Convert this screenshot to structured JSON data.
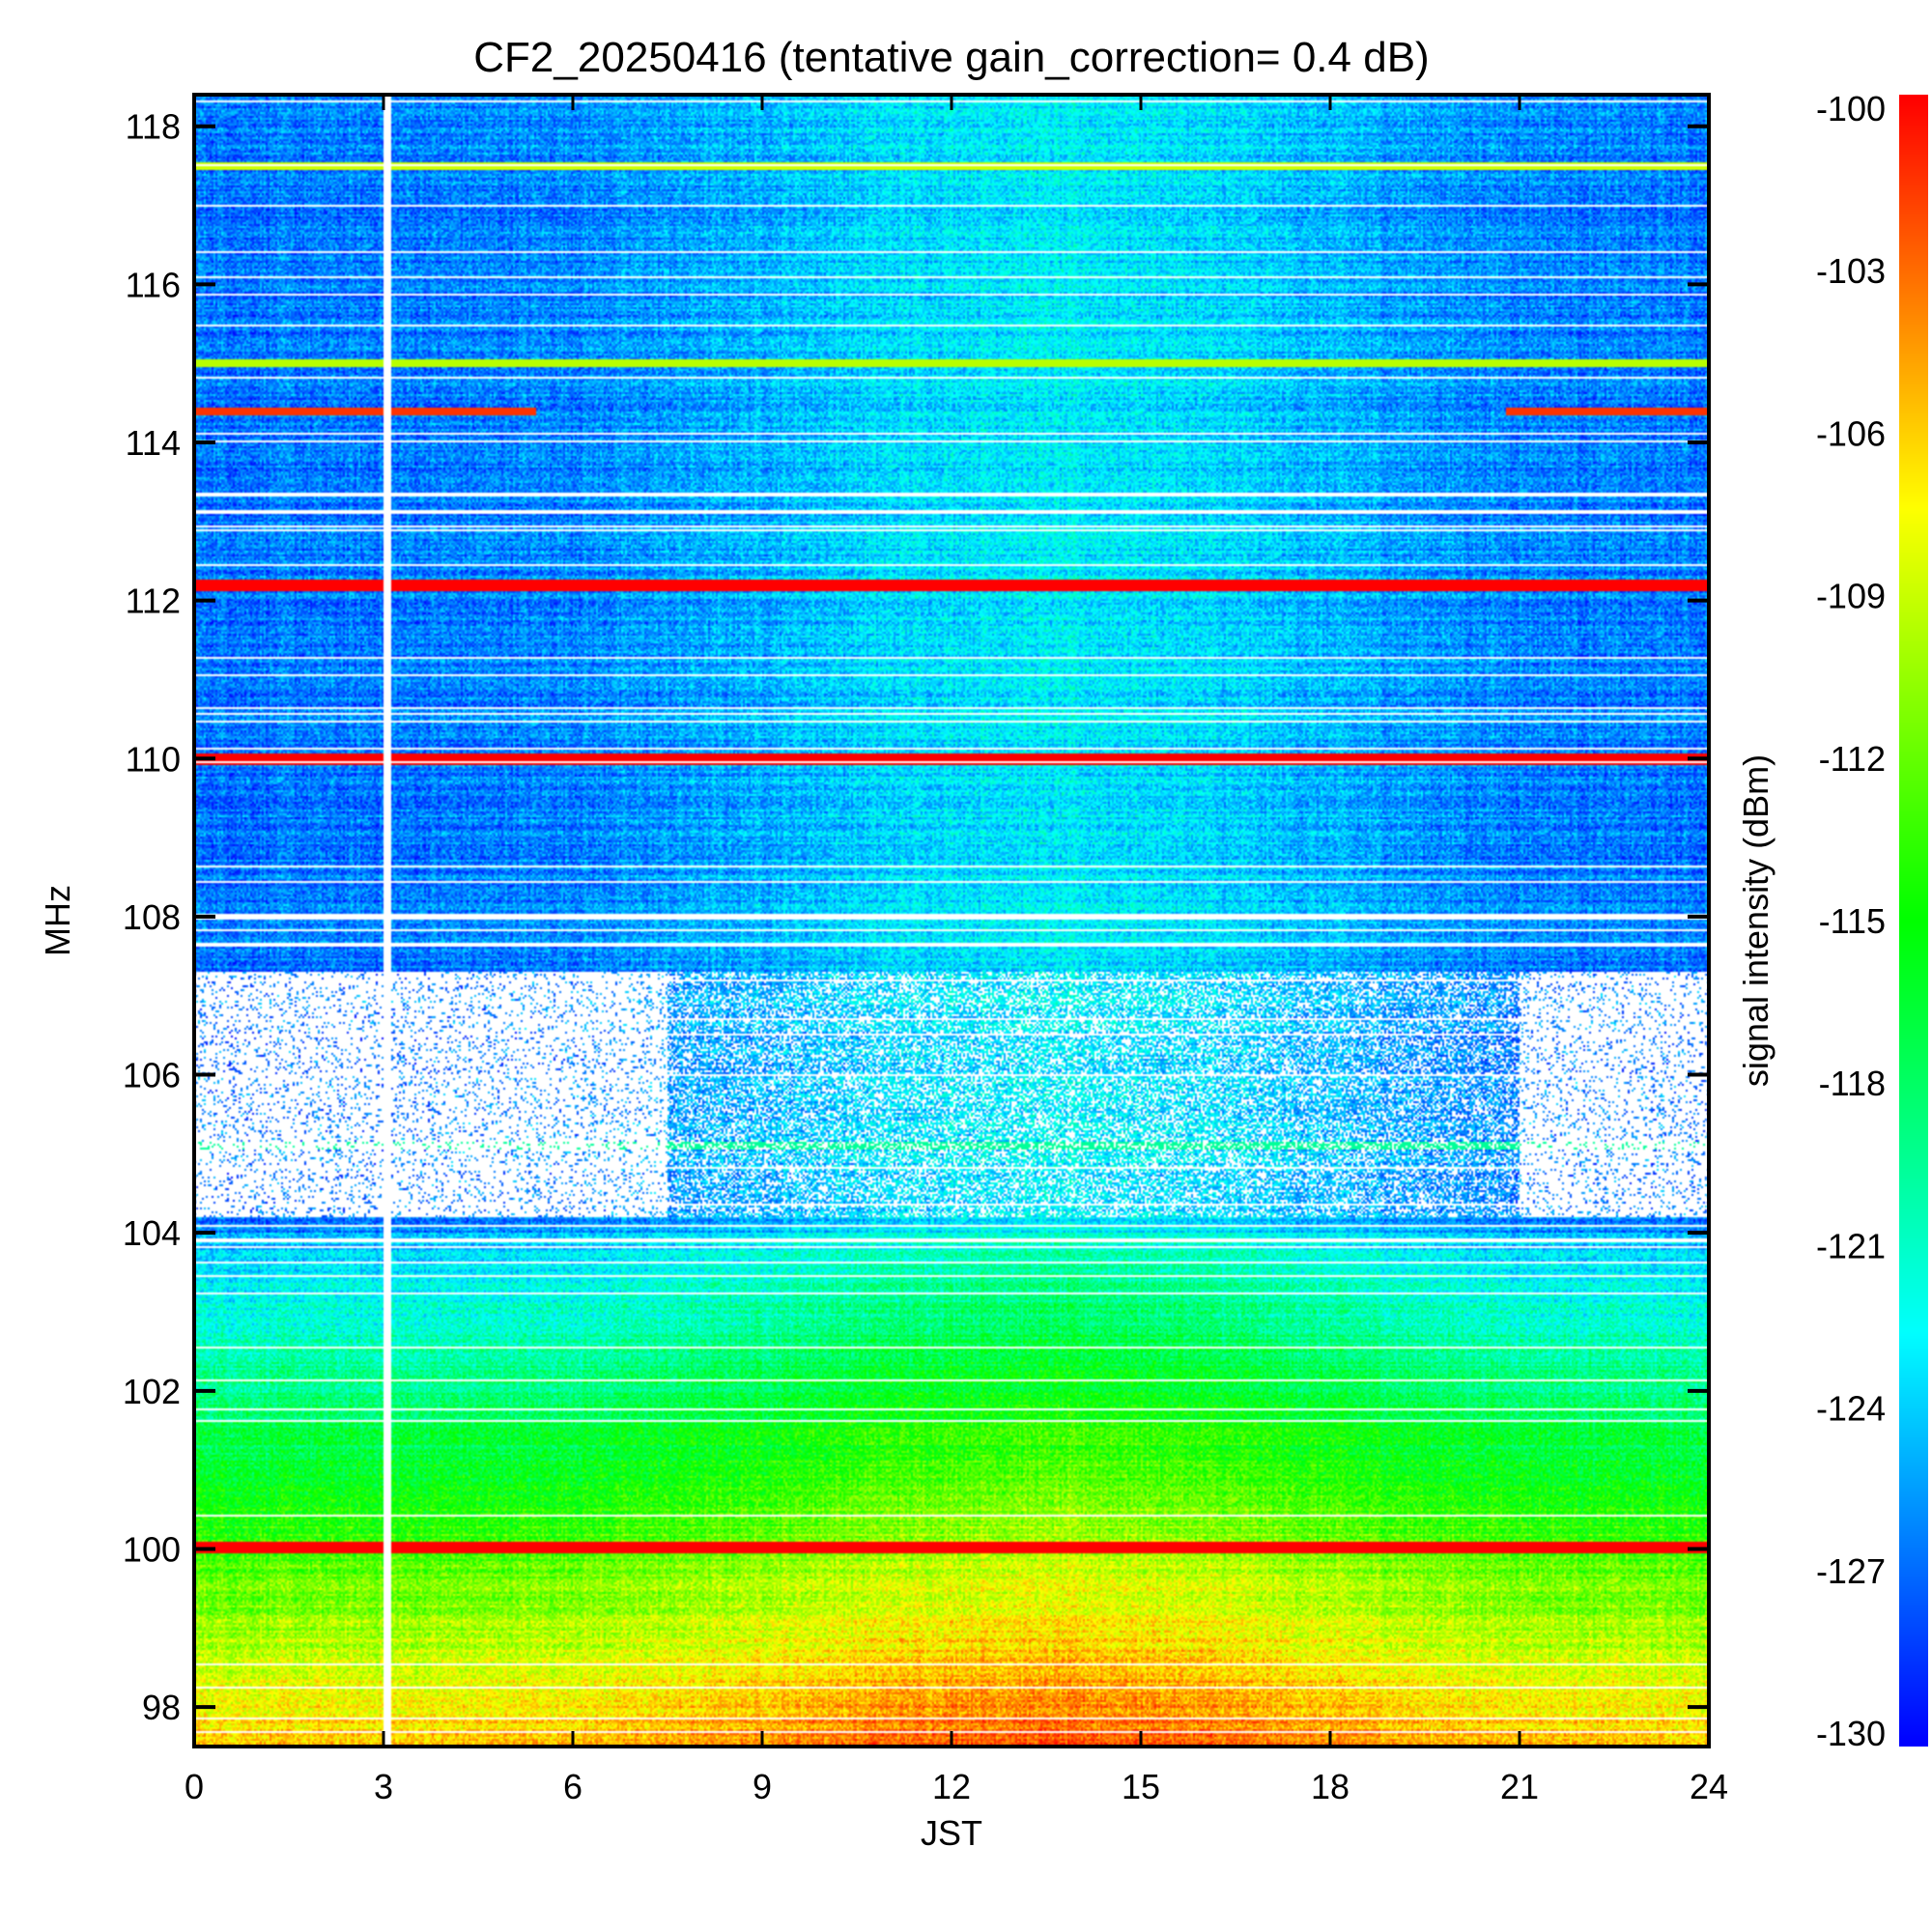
{
  "chart_data": {
    "type": "heatmap",
    "title": "CF2_20250416 (tentative gain_correction=  0.4 dB)",
    "xlabel": "JST",
    "ylabel": "MHz",
    "colorbar_label": "signal intensity (dBm)",
    "xlim": [
      0,
      24
    ],
    "ylim": [
      97.5,
      118.4
    ],
    "x_ticks": [
      0,
      3,
      6,
      9,
      12,
      15,
      18,
      21,
      24
    ],
    "y_ticks": [
      98,
      100,
      102,
      104,
      106,
      108,
      110,
      112,
      114,
      116,
      118
    ],
    "colorbar_range": [
      -130,
      -100
    ],
    "colorbar_ticks": [
      -100,
      -103,
      -106,
      -109,
      -112,
      -115,
      -118,
      -121,
      -124,
      -127,
      -130
    ],
    "colormap": "rainbow (blue to red)",
    "colors": {
      "low": "#0000ff",
      "mid": "#00ff00",
      "high": "#ff0000",
      "no_data": "#ffffff"
    },
    "strong_carriers_mhz": [
      100.0,
      110.0,
      112.2
    ],
    "data_gap_jst": 3.05,
    "saturated_band_mhz": [
      104.2,
      107.3
    ]
  }
}
